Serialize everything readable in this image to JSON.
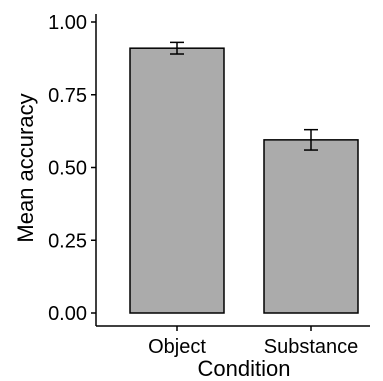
{
  "chart_data": {
    "type": "bar",
    "xlabel": "Condition",
    "ylabel": "Mean accuracy",
    "categories": [
      "Object",
      "Substance"
    ],
    "values": [
      0.91,
      0.595
    ],
    "error_bars": [
      {
        "lower": 0.89,
        "upper": 0.93
      },
      {
        "lower": 0.56,
        "upper": 0.63
      }
    ],
    "ylim": [
      0,
      1.0
    ],
    "yticks": [
      0,
      0.25,
      0.5,
      0.75,
      1.0
    ],
    "ytick_labels": [
      "0.00",
      "0.25",
      "0.50",
      "0.75",
      "1.00"
    ],
    "grid": false,
    "legend": "none",
    "colors": {
      "bar_fill": "#ababab",
      "bar_stroke": "#000000",
      "axis": "#000000",
      "text": "#000000"
    }
  }
}
